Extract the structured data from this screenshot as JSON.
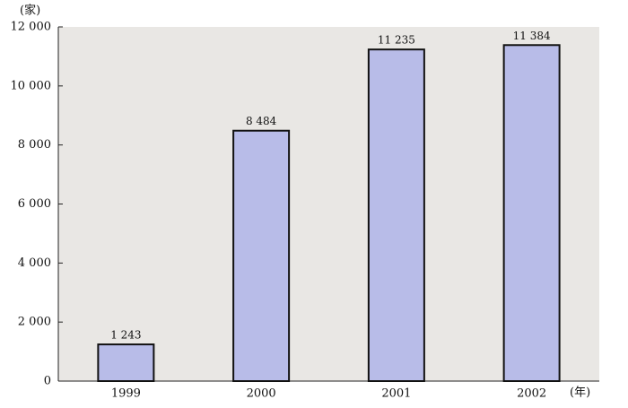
{
  "chart_data": {
    "type": "bar",
    "y_label": "(家)",
    "x_label": "(年)",
    "categories": [
      "1999",
      "2000",
      "2001",
      "2002"
    ],
    "values": [
      1243,
      8484,
      11235,
      11384
    ],
    "value_labels": [
      "1 243",
      "8 484",
      "11 235",
      "11 384"
    ],
    "color": "#b8bce8",
    "ylim": [
      0,
      12000
    ],
    "yticks": [
      0,
      {
        "value": 2000,
        "label": "2 000"
      },
      {
        "value": 4000,
        "label": "4 000"
      },
      {
        "value": 6000,
        "label": "6 000"
      },
      {
        "value": 8000,
        "label": "8 000"
      },
      {
        "value": 10000,
        "label": "10 000"
      },
      {
        "value": 12000,
        "label": "12 000"
      }
    ],
    "grid": false
  }
}
